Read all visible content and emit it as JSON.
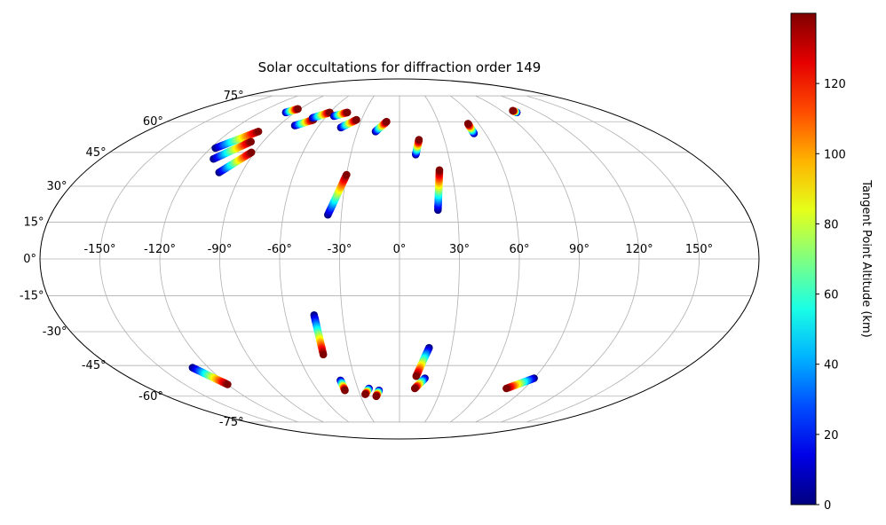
{
  "chart_data": {
    "type": "scatter",
    "projection": "mollweide",
    "title": "Solar occultations for diffraction order 149",
    "x_ticks": [
      "-150°",
      "-120°",
      "-90°",
      "-60°",
      "-30°",
      "0°",
      "30°",
      "60°",
      "90°",
      "120°",
      "150°"
    ],
    "y_ticks": [
      "-75°",
      "-60°",
      "-45°",
      "-30°",
      "-15°",
      "0°",
      "15°",
      "30°",
      "45°",
      "60°",
      "75°"
    ],
    "grid": true,
    "colorbar": {
      "label": "Tangent Point Altitude (km)",
      "colormap": "jet",
      "range": [
        0,
        140
      ],
      "ticks": [
        "0",
        "20",
        "40",
        "60",
        "80",
        "100",
        "120"
      ]
    },
    "tracks": [
      {
        "lon1": -98,
        "lat1": 65,
        "lon2": -92,
        "lat2": 67
      },
      {
        "lon1": -78,
        "lat1": 58,
        "lon2": -68,
        "lat2": 61
      },
      {
        "lon1": -70,
        "lat1": 62,
        "lon2": -60,
        "lat2": 65
      },
      {
        "lon1": -54,
        "lat1": 63,
        "lon2": -45,
        "lat2": 65
      },
      {
        "lon1": -43,
        "lat1": 57,
        "lon2": -34,
        "lat2": 61
      },
      {
        "lon1": -17,
        "lat1": 55,
        "lon2": -10,
        "lat2": 60
      },
      {
        "lon1": -117,
        "lat1": 47,
        "lon2": -100,
        "lat2": 55
      },
      {
        "lon1": -112,
        "lat1": 42,
        "lon2": -98,
        "lat2": 50
      },
      {
        "lon1": -103,
        "lat1": 36,
        "lon2": -92,
        "lat2": 45
      },
      {
        "lon1": -37,
        "lat1": 18,
        "lon2": -30,
        "lat2": 35
      },
      {
        "lon1": 10,
        "lat1": 44,
        "lon2": 13,
        "lat2": 51
      },
      {
        "lon1": 20,
        "lat1": 20,
        "lon2": 23,
        "lat2": 37
      },
      {
        "lon1": 52,
        "lat1": 54,
        "lon2": 52,
        "lat2": 59
      },
      {
        "lon1": 101,
        "lat1": 65,
        "lon2": 100,
        "lat2": 66
      },
      {
        "lon1": -130,
        "lat1": -46,
        "lon2": -120,
        "lat2": -54
      },
      {
        "lon1": -45,
        "lat1": -23,
        "lon2": -45,
        "lat2": -40
      },
      {
        "lon1": -40,
        "lat1": -52,
        "lon2": -40,
        "lat2": -57
      },
      {
        "lon1": -22,
        "lat1": -56,
        "lon2": -26,
        "lat2": -59
      },
      {
        "lon1": -15,
        "lat1": -57,
        "lon2": -18,
        "lat2": -60
      },
      {
        "lon1": 17,
        "lat1": -37,
        "lon2": 11,
        "lat2": -50
      },
      {
        "lon1": 17,
        "lat1": -51,
        "lon2": 11,
        "lat2": -56
      },
      {
        "lon1": 90,
        "lat1": -51,
        "lon2": 77,
        "lat2": -56
      }
    ]
  }
}
